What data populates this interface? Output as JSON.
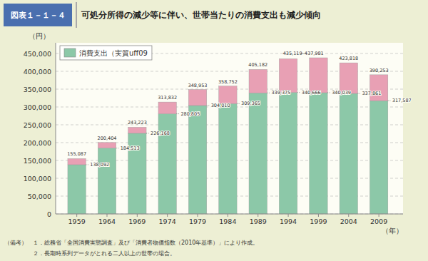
{
  "chart_data": {
    "type": "bar",
    "stacked": true,
    "figure_number": "図表１－１－４",
    "title": "可処分所得の減少等に伴い、世帯当たりの消費支出も減少傾向",
    "xlabel": "（年）",
    "ylabel": "（円）",
    "x": [
      1959,
      1964,
      1969,
      1974,
      1979,
      1984,
      1989,
      1994,
      1999,
      2004,
      2009
    ],
    "xlim": [
      1955.5,
      2013
    ],
    "xticks": [
      1959,
      1964,
      1969,
      1974,
      1979,
      1984,
      1989,
      1994,
      1999,
      2004,
      2009
    ],
    "ylim": [
      0,
      480000
    ],
    "yticks": [
      0,
      {
        "value": 50000,
        "label": "50,000"
      },
      {
        "value": 100000,
        "label": "100,000"
      },
      {
        "value": 150000,
        "label": "150,000"
      },
      {
        "value": 200000,
        "label": "200,000"
      },
      {
        "value": 250000,
        "label": "250,000"
      },
      {
        "value": 300000,
        "label": "300,000"
      },
      {
        "value": 350000,
        "label": "350,000"
      },
      {
        "value": 400000,
        "label": "400,000"
      },
      {
        "value": 450000,
        "label": "450,000"
      }
    ],
    "grid": true,
    "legend": "upper left",
    "data_labels": true,
    "series": [
      {
        "name": "消費支出（実質uff09",
        "color": "#8CC8A8",
        "values": [
          138092,
          184513,
          226168,
          280805,
          304010,
          309365,
          339375,
          340666,
          340039,
          337861,
          317587
        ],
        "value_labels": [
          "138,092",
          "184,513",
          "226,168",
          "280,805",
          "304,010",
          "309,365",
          "339,375",
          "340,666",
          "340,039",
          "337,861",
          "317,587"
        ]
      },
      {
        "color": "#E8A0B4",
        "values": [
          16995,
          15891,
          17055,
          33027,
          44943,
          49387,
          65807,
          94453,
          97942,
          85957,
          72666
        ]
      }
    ],
    "totals": [
      155087,
      200404,
      243223,
      313832,
      348953,
      358752,
      405182,
      435119,
      437981,
      423818,
      390253
    ],
    "total_labels": [
      "155,087",
      "200,404",
      "243,223",
      "313,832",
      "348,953",
      "358,752",
      "405,182",
      "435,119–437,981",
      null,
      "423,818",
      "390,253"
    ],
    "notes": [
      "（備考）　１．総務省「全国消費実態調査」及び「消費者物価指数（2010年基準）」により作成。",
      "　　　　　２．長期時系列データがとれる二人以上の世帯の場合。"
    ]
  }
}
